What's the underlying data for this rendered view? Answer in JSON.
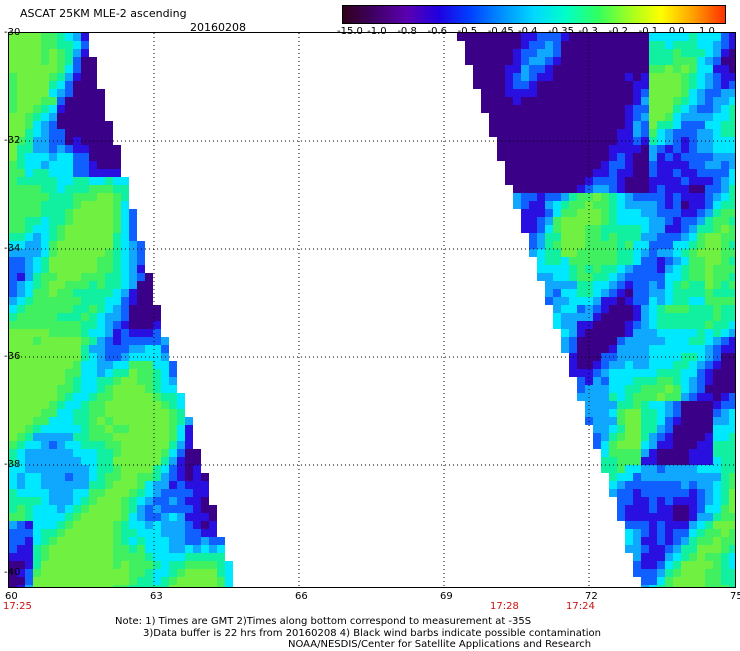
{
  "header": {
    "title": "ASCAT 25KM MLE-2 ascending",
    "date": "20160208"
  },
  "colorbar": {
    "labels": [
      "-15.0",
      "-1.0",
      "-0.8",
      "-0.6",
      "-0.5",
      "-0.45",
      "-0.4",
      "-0.35",
      "-0.3",
      "-0.2",
      "-0.1",
      "0.0",
      "1.0"
    ],
    "colors": [
      "#30001a",
      "#400066",
      "#5a00b0",
      "#2000e0",
      "#0040ff",
      "#0090ff",
      "#00d8ff",
      "#00ffc8",
      "#30ff60",
      "#a0ff20",
      "#ffff00",
      "#ffa000",
      "#ff3000"
    ]
  },
  "map": {
    "lat_labels": [
      "-30",
      "-32",
      "-34",
      "-36",
      "-38",
      "-40"
    ],
    "lon_labels": [
      "60",
      "63",
      "66",
      "69",
      "72",
      "75"
    ],
    "time_labels": [
      "17:25",
      "17:28",
      "17:24"
    ]
  },
  "notes": {
    "line1": "Note: 1) Times are GMT 2)Times along bottom correspond to measurement at -35S",
    "line2": "3)Data buffer is 22 hrs from 20160208 4) Black wind barbs indicate possible contamination",
    "line3": "NOAA/NESDIS/Center for Satellite Applications and Research"
  }
}
